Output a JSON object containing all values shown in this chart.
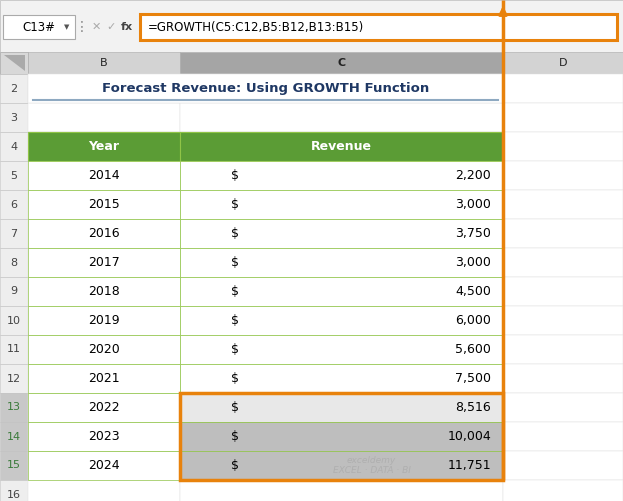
{
  "title": "Forecast Revenue: Using GROWTH Function",
  "formula_bar_text": "=GROWTH(C5:C12,B5:B12,B13:B15)",
  "cell_ref": "C13#",
  "table_headers": [
    "Year",
    "Revenue"
  ],
  "years": [
    2014,
    2015,
    2016,
    2017,
    2018,
    2019,
    2020,
    2021,
    2022,
    2023,
    2024
  ],
  "revenues": [
    "2,200",
    "3,000",
    "3,750",
    "3,000",
    "4,500",
    "6,000",
    "5,600",
    "7,500",
    "8,516",
    "10,004",
    "11,751"
  ],
  "header_bg": "#5B9C35",
  "header_text": "#FFFFFF",
  "grid_line_color": "#90C447",
  "title_color": "#1F3864",
  "orange_border": "#E8820C",
  "col_header_selected_bg": "#A5A5A5",
  "col_header_bg": "#D3D3D3",
  "row_header_bg": "#EEEEEE",
  "row_header_selected_bg": "#C8C8C8",
  "data_gray_bg": "#BEBEBE",
  "toolbar_bg": "#F2F2F2",
  "watermark_text": "exceldemy\nEXCEL · DATA · BI",
  "blue_underline": "#8EA9C1",
  "formula_font_size": 8.5,
  "cell_ref_font_size": 8.5,
  "title_font_size": 9.5,
  "data_font_size": 9,
  "row_num_font_size": 8
}
